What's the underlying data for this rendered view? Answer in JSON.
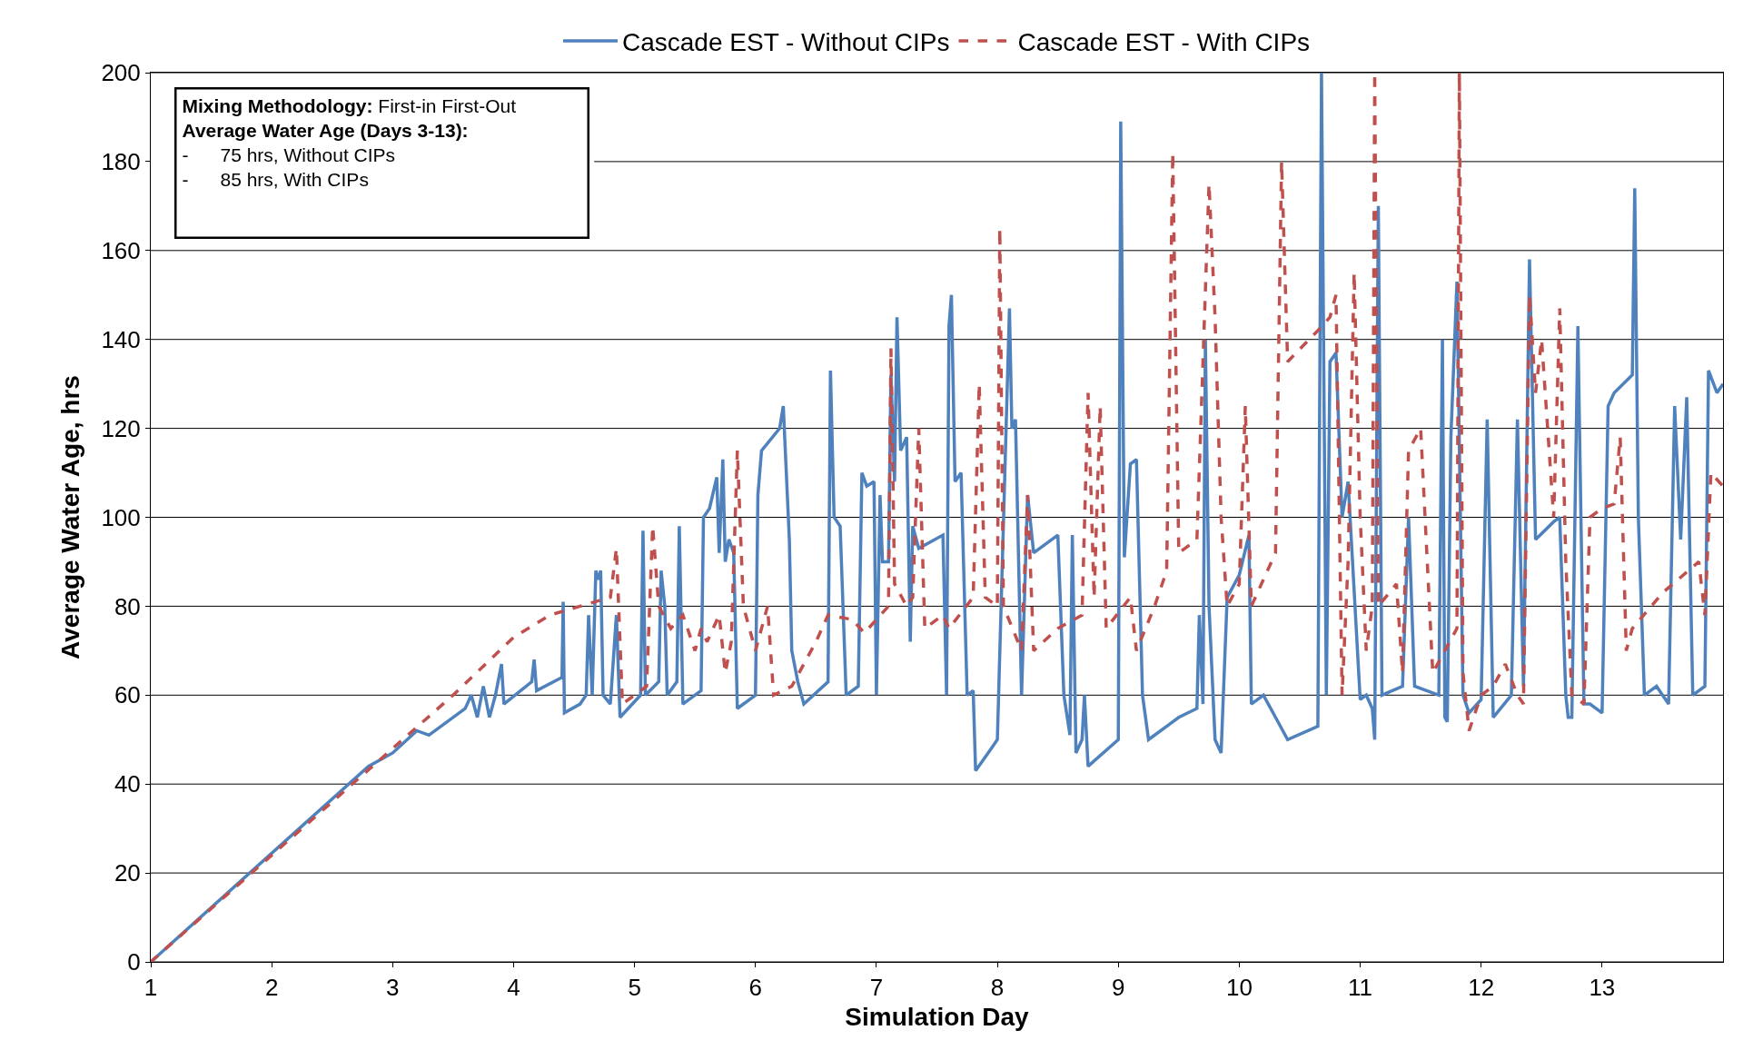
{
  "chart_data": {
    "type": "line",
    "xlabel": "Simulation Day",
    "ylabel": "Average Water Age, hrs",
    "xlim": [
      1,
      14
    ],
    "xticks": [
      1,
      2,
      3,
      4,
      5,
      6,
      7,
      8,
      9,
      10,
      11,
      12,
      13
    ],
    "ylim": [
      0,
      200
    ],
    "yticks": [
      0,
      20,
      40,
      60,
      80,
      100,
      120,
      140,
      160,
      180,
      200
    ],
    "grid": "y",
    "legend": "top",
    "marker": "none",
    "annotations": [
      "Mixing Methodology: First-in First-Out",
      "Average Water Age (Days 3-13):",
      "-      75 hrs, Without CIPs",
      "-      85 hrs, With CIPs"
    ],
    "series": [
      {
        "name": "Cascade EST - Without CIPs",
        "color": "#4f81bd",
        "line_style": "solid",
        "x": [
          1,
          2.8,
          3.0,
          3.2,
          3.3,
          3.6,
          3.65,
          3.7,
          3.75,
          3.8,
          3.85,
          3.9,
          3.92,
          4.15,
          4.17,
          4.19,
          4.4,
          4.41,
          4.42,
          4.55,
          4.6,
          4.62,
          4.65,
          4.68,
          4.7,
          4.72,
          4.74,
          4.8,
          4.85,
          4.88,
          5.05,
          5.07,
          5.09,
          5.2,
          5.22,
          5.25,
          5.27,
          5.35,
          5.37,
          5.4,
          5.55,
          5.57,
          5.62,
          5.68,
          5.7,
          5.73,
          5.75,
          5.78,
          5.82,
          5.85,
          6.0,
          6.02,
          6.05,
          6.2,
          6.23,
          6.28,
          6.3,
          6.35,
          6.4,
          6.6,
          6.62,
          6.65,
          6.7,
          6.75,
          6.85,
          6.88,
          6.92,
          6.98,
          7.0,
          7.03,
          7.05,
          7.1,
          7.12,
          7.15,
          7.17,
          7.2,
          7.25,
          7.28,
          7.3,
          7.35,
          7.55,
          7.58,
          7.6,
          7.62,
          7.65,
          7.7,
          7.75,
          7.8,
          7.82,
          7.95,
          8.0,
          8.1,
          8.12,
          8.15,
          8.2,
          8.25,
          8.3,
          8.5,
          8.55,
          8.6,
          8.62,
          8.65,
          8.7,
          8.72,
          8.75,
          9.0,
          9.02,
          9.05,
          9.1,
          9.15,
          9.2,
          9.25,
          9.4,
          9.5,
          9.65,
          9.67,
          9.7,
          9.72,
          9.75,
          9.8,
          9.85,
          9.9,
          10.0,
          10.08,
          10.1,
          10.2,
          10.3,
          10.4,
          10.65,
          10.68,
          10.72,
          10.75,
          10.8,
          10.85,
          10.9,
          11.0,
          11.05,
          11.1,
          11.12,
          11.15,
          11.18,
          11.35,
          11.4,
          11.45,
          11.65,
          11.68,
          11.7,
          11.72,
          11.75,
          11.8,
          11.85,
          11.9,
          12.0,
          12.05,
          12.1,
          12.25,
          12.3,
          12.35,
          12.4,
          12.45,
          12.6,
          12.65,
          12.7,
          12.72,
          12.75,
          12.8,
          12.85,
          12.9,
          13.0,
          13.05,
          13.1,
          13.25,
          13.27,
          13.3,
          13.35,
          13.45,
          13.5,
          13.55,
          13.6,
          13.65,
          13.7,
          13.75,
          13.85,
          13.88,
          13.95,
          14.0
        ],
        "values": [
          0,
          44,
          47,
          52,
          51,
          57,
          60,
          55,
          62,
          55,
          60,
          67,
          58,
          63,
          68,
          61,
          64,
          81,
          56,
          58,
          60,
          78,
          60,
          88,
          86,
          88,
          60,
          58,
          78,
          55,
          60,
          97,
          60,
          63,
          88,
          80,
          60,
          63,
          98,
          58,
          61,
          100,
          102,
          109,
          92,
          113,
          90,
          95,
          92,
          57,
          60,
          105,
          115,
          120,
          125,
          95,
          70,
          63,
          58,
          63,
          133,
          100,
          98,
          60,
          62,
          110,
          107,
          108,
          60,
          105,
          90,
          90,
          132,
          108,
          145,
          115,
          118,
          72,
          98,
          93,
          96,
          60,
          143,
          150,
          108,
          110,
          60,
          61,
          43,
          48,
          50,
          147,
          120,
          122,
          60,
          105,
          92,
          96,
          60,
          51,
          96,
          47,
          50,
          60,
          44,
          50,
          189,
          91,
          112,
          113,
          60,
          50,
          53,
          55,
          57,
          78,
          58,
          140,
          80,
          50,
          47,
          82,
          87,
          96,
          58,
          60,
          55,
          50,
          53,
          200,
          60,
          135,
          137,
          100,
          108,
          59,
          60,
          57,
          50,
          170,
          60,
          62,
          100,
          62,
          60,
          140,
          55,
          54,
          118,
          153,
          60,
          56,
          59,
          122,
          55,
          60,
          122,
          62,
          158,
          95,
          99,
          100,
          60,
          55,
          55,
          143,
          58,
          58,
          56,
          125,
          128,
          132,
          174,
          100,
          60,
          62,
          60,
          58,
          125,
          95,
          127,
          60,
          62,
          133,
          128,
          130
        ]
      },
      {
        "name": "Cascade EST - With CIPs",
        "color": "#c0504d",
        "line_style": "dashed",
        "x": [
          1,
          3.5,
          4.0,
          4.3,
          4.8,
          4.85,
          4.9,
          5.0,
          5.1,
          5.15,
          5.2,
          5.3,
          5.4,
          5.5,
          5.55,
          5.6,
          5.7,
          5.75,
          5.8,
          5.85,
          5.9,
          6.0,
          6.1,
          6.15,
          6.3,
          6.5,
          6.6,
          6.8,
          6.9,
          7.1,
          7.12,
          7.15,
          7.25,
          7.3,
          7.35,
          7.4,
          7.55,
          7.6,
          7.8,
          7.85,
          7.9,
          8.0,
          8.02,
          8.05,
          8.2,
          8.25,
          8.3,
          8.5,
          8.7,
          8.75,
          8.8,
          8.85,
          8.9,
          9.1,
          9.15,
          9.3,
          9.4,
          9.45,
          9.5,
          9.65,
          9.75,
          9.8,
          9.85,
          9.9,
          10.0,
          10.05,
          10.1,
          10.3,
          10.35,
          10.4,
          10.65,
          10.75,
          10.8,
          10.85,
          10.9,
          10.95,
          11.0,
          11.05,
          11.1,
          11.12,
          11.15,
          11.3,
          11.35,
          11.4,
          11.5,
          11.6,
          11.7,
          11.8,
          11.82,
          11.85,
          11.9,
          12.0,
          12.1,
          12.2,
          12.3,
          12.35,
          12.4,
          12.45,
          12.5,
          12.6,
          12.65,
          12.7,
          12.75,
          12.85,
          12.9,
          13.0,
          13.1,
          13.15,
          13.2,
          13.25,
          13.5,
          13.8,
          13.85,
          13.9,
          14.0
        ],
        "values": [
          0,
          60,
          73,
          78,
          82,
          93,
          58,
          60,
          62,
          98,
          80,
          75,
          78,
          70,
          75,
          72,
          78,
          65,
          72,
          115,
          80,
          70,
          80,
          60,
          62,
          72,
          78,
          77,
          74,
          80,
          138,
          85,
          80,
          82,
          120,
          75,
          78,
          75,
          82,
          130,
          82,
          80,
          165,
          80,
          70,
          105,
          70,
          75,
          78,
          128,
          82,
          125,
          75,
          82,
          70,
          80,
          88,
          182,
          92,
          95,
          175,
          145,
          100,
          80,
          85,
          125,
          80,
          92,
          180,
          135,
          142,
          145,
          150,
          60,
          90,
          155,
          100,
          70,
          80,
          200,
          80,
          85,
          65,
          115,
          120,
          65,
          70,
          75,
          200,
          65,
          52,
          60,
          62,
          67,
          60,
          58,
          150,
          128,
          140,
          100,
          147,
          90,
          60,
          58,
          100,
          102,
          103,
          118,
          70,
          75,
          83,
          90,
          78,
          110,
          107
        ]
      }
    ]
  }
}
